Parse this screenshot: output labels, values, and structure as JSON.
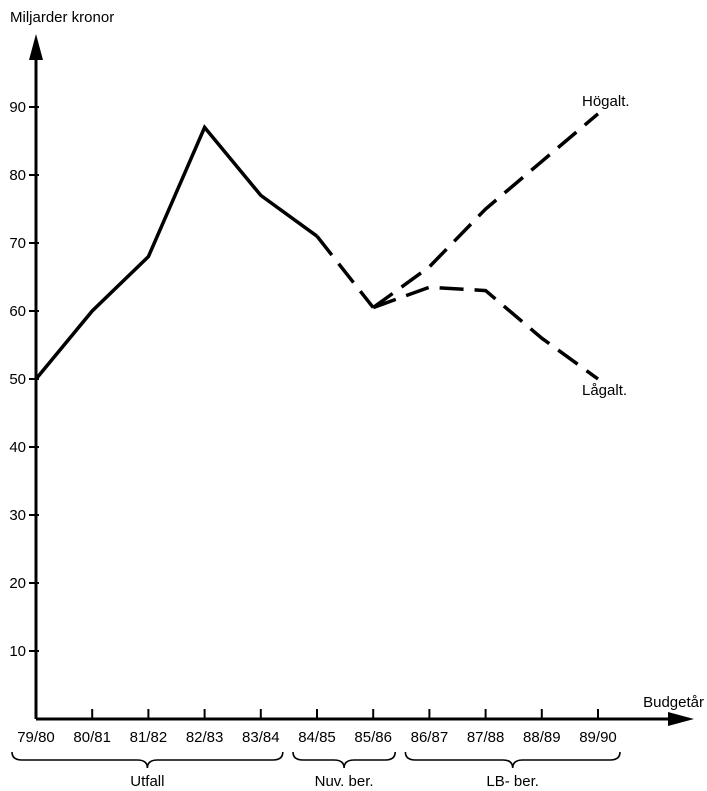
{
  "chart_data": {
    "type": "line",
    "ylabel": "Miljarder kronor",
    "xlabel": "Budgetår",
    "ylim": [
      0,
      100
    ],
    "yticks": [
      10,
      20,
      30,
      40,
      50,
      60,
      70,
      80,
      90
    ],
    "categories": [
      "79/80",
      "80/81",
      "81/82",
      "82/83",
      "83/84",
      "84/85",
      "85/86",
      "86/87",
      "87/88",
      "88/89",
      "89/90"
    ],
    "series": [
      {
        "name": "",
        "style": "solid",
        "x": [
          "79/80",
          "80/81",
          "81/82",
          "82/83",
          "83/84",
          "84/85"
        ],
        "values": [
          50,
          60,
          68,
          87,
          77,
          71
        ]
      },
      {
        "name": "",
        "style": "dashed",
        "x": [
          "84/85",
          "85/86"
        ],
        "values": [
          71,
          60.5
        ]
      },
      {
        "name": "Högalt.",
        "style": "dashed",
        "x": [
          "85/86",
          "86/87",
          "87/88",
          "88/89",
          "89/90"
        ],
        "values": [
          60.5,
          66.5,
          75,
          82,
          89
        ]
      },
      {
        "name": "Lågalt.",
        "style": "dashed",
        "x": [
          "85/86",
          "86/87",
          "87/88",
          "88/89",
          "89/90"
        ],
        "values": [
          60.5,
          63.5,
          63,
          56,
          50
        ]
      }
    ],
    "groups": [
      {
        "label": "Utfall",
        "from": "79/80",
        "to": "83/84"
      },
      {
        "label": "Nuv. ber.",
        "from": "84/85",
        "to": "85/86"
      },
      {
        "label": "LB- ber.",
        "from": "86/87",
        "to": "89/90"
      }
    ],
    "grid": false,
    "line_color": "#000000"
  }
}
